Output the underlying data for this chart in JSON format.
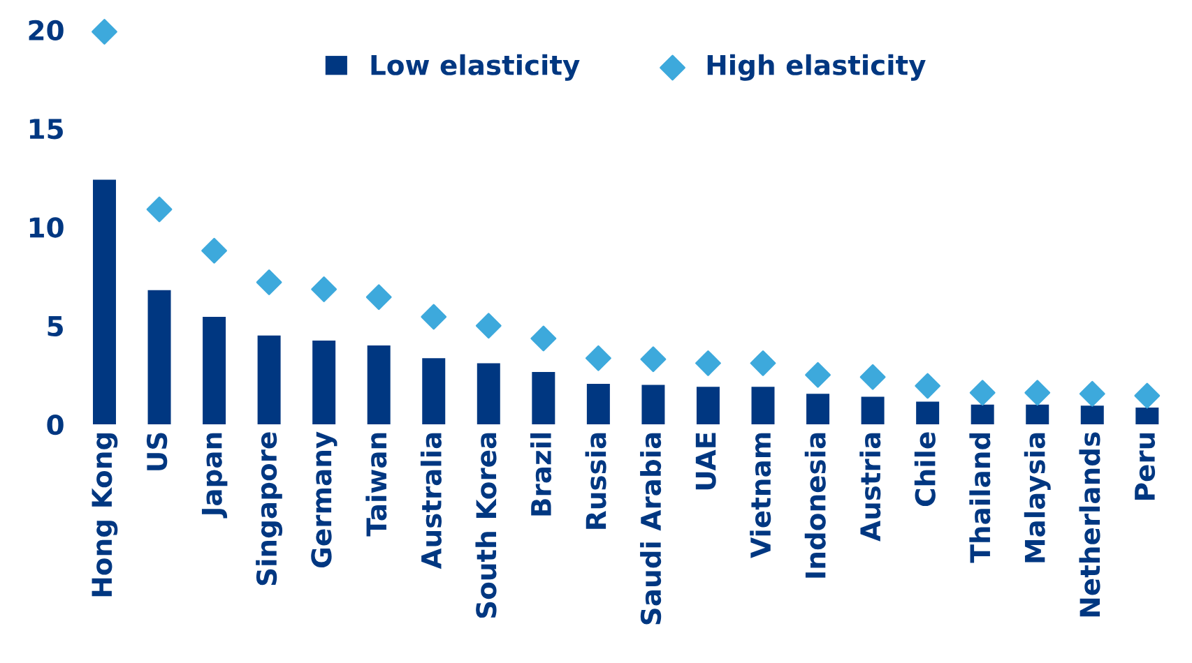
{
  "chart_data": {
    "type": "bar",
    "categories": [
      "Hong Kong",
      "US",
      "Japan",
      "Singapore",
      "Germany",
      "Taiwan",
      "Australia",
      "South Korea",
      "Brazil",
      "Russia",
      "Saudi Arabia",
      "UAE",
      "Vietnam",
      "Indonesia",
      "Austria",
      "Chile",
      "Thailand",
      "Malaysia",
      "Netherlands",
      "Peru"
    ],
    "series": [
      {
        "name": "Low elasticity",
        "color": "#003781",
        "values": [
          12.4,
          6.8,
          5.45,
          4.5,
          4.25,
          4.0,
          3.35,
          3.1,
          2.65,
          2.05,
          2.0,
          1.9,
          1.9,
          1.55,
          1.4,
          1.15,
          1.0,
          1.0,
          0.95,
          0.85
        ]
      },
      {
        "name": "High elasticity",
        "type": "scatter",
        "color": "#3da9dc",
        "marker": "diamond",
        "values": [
          19.9,
          10.9,
          8.8,
          7.2,
          6.85,
          6.45,
          5.45,
          5.0,
          4.35,
          3.35,
          3.3,
          3.1,
          3.1,
          2.5,
          2.4,
          1.95,
          1.6,
          1.6,
          1.55,
          1.45
        ]
      }
    ],
    "ylim": [
      0,
      20
    ],
    "yticks": [
      0,
      5,
      10,
      15,
      20
    ],
    "grid": false,
    "legend": "top"
  }
}
